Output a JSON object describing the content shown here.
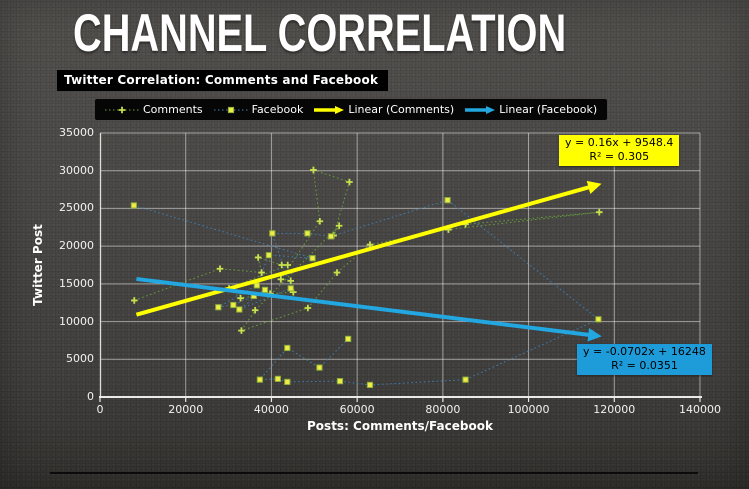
{
  "slide": {
    "title": "CHANNEL CORRELATION",
    "chart_title": "Twitter Correlation: Comments and Facebook"
  },
  "chart_data": {
    "type": "scatter",
    "title": "Twitter Correlation: Comments and Facebook",
    "xlabel": "Posts: Comments/Facebook",
    "ylabel": "Twitter Post",
    "xlim": [
      0,
      140000
    ],
    "ylim": [
      0,
      35000
    ],
    "x_ticks": [
      0,
      20000,
      40000,
      60000,
      80000,
      100000,
      120000,
      140000
    ],
    "y_ticks": [
      0,
      5000,
      10000,
      15000,
      20000,
      25000,
      30000,
      35000
    ],
    "grid": true,
    "legend_position": "top",
    "legend": [
      "Comments",
      "Facebook",
      "Linear (Comments)",
      "Linear (Facebook)"
    ],
    "series": [
      {
        "name": "Comments",
        "marker": "plus",
        "marker_color": "#C8E04B",
        "line_color": "#69A23B",
        "points": [
          [
            8000,
            12800
          ],
          [
            28000,
            17000
          ],
          [
            37700,
            16500
          ],
          [
            36900,
            18500
          ],
          [
            42400,
            17500
          ],
          [
            43800,
            17500
          ],
          [
            30100,
            14400
          ],
          [
            32800,
            13100
          ],
          [
            39700,
            13700
          ],
          [
            45100,
            13900
          ],
          [
            44500,
            15400
          ],
          [
            42200,
            15600
          ],
          [
            51300,
            23300
          ],
          [
            49800,
            30100
          ],
          [
            58200,
            28500
          ],
          [
            54500,
            21400
          ],
          [
            55800,
            22700
          ],
          [
            36200,
            11500
          ],
          [
            33000,
            8800
          ],
          [
            48500,
            11800
          ],
          [
            55300,
            16500
          ],
          [
            63000,
            20200
          ],
          [
            81300,
            22200
          ],
          [
            116500,
            24500
          ],
          [
            85300,
            22900
          ]
        ]
      },
      {
        "name": "Facebook",
        "marker": "square",
        "marker_color": "#EFED45",
        "marker_border": "#8FB03A",
        "line_color": "#3D80B2",
        "points": [
          [
            7900,
            25400
          ],
          [
            49600,
            18400
          ],
          [
            39400,
            18800
          ],
          [
            36600,
            14800
          ],
          [
            27600,
            11900
          ],
          [
            31100,
            12200
          ],
          [
            35900,
            13400
          ],
          [
            38500,
            14200
          ],
          [
            32500,
            11600
          ],
          [
            44500,
            14400
          ],
          [
            40200,
            21700
          ],
          [
            48400,
            21700
          ],
          [
            53900,
            21300
          ],
          [
            81100,
            26100
          ],
          [
            116300,
            10300
          ],
          [
            85300,
            2300
          ],
          [
            63000,
            1600
          ],
          [
            56000,
            2100
          ],
          [
            43700,
            2000
          ],
          [
            41500,
            2400
          ],
          [
            37300,
            2300
          ],
          [
            43700,
            6500
          ],
          [
            51200,
            3900
          ],
          [
            57900,
            7700
          ]
        ]
      }
    ],
    "trendlines": [
      {
        "name": "Linear (Comments)",
        "color": "#FFFF00",
        "slope": 0.16,
        "intercept": 9548.4,
        "r2": 0.305,
        "x_start": 8500,
        "x_end": 115500,
        "equation": "y = 0.16x + 9548.4",
        "r2_label": "R² = 0.305",
        "label_bg": "#FFFF00"
      },
      {
        "name": "Linear (Facebook)",
        "color": "#22A7E0",
        "slope": -0.0702,
        "intercept": 16248,
        "r2": 0.0351,
        "x_start": 8500,
        "x_end": 115500,
        "equation": "y = -0.0702x + 16248",
        "r2_label": "R² = 0.0351",
        "label_bg": "#1E9CD9"
      }
    ]
  }
}
